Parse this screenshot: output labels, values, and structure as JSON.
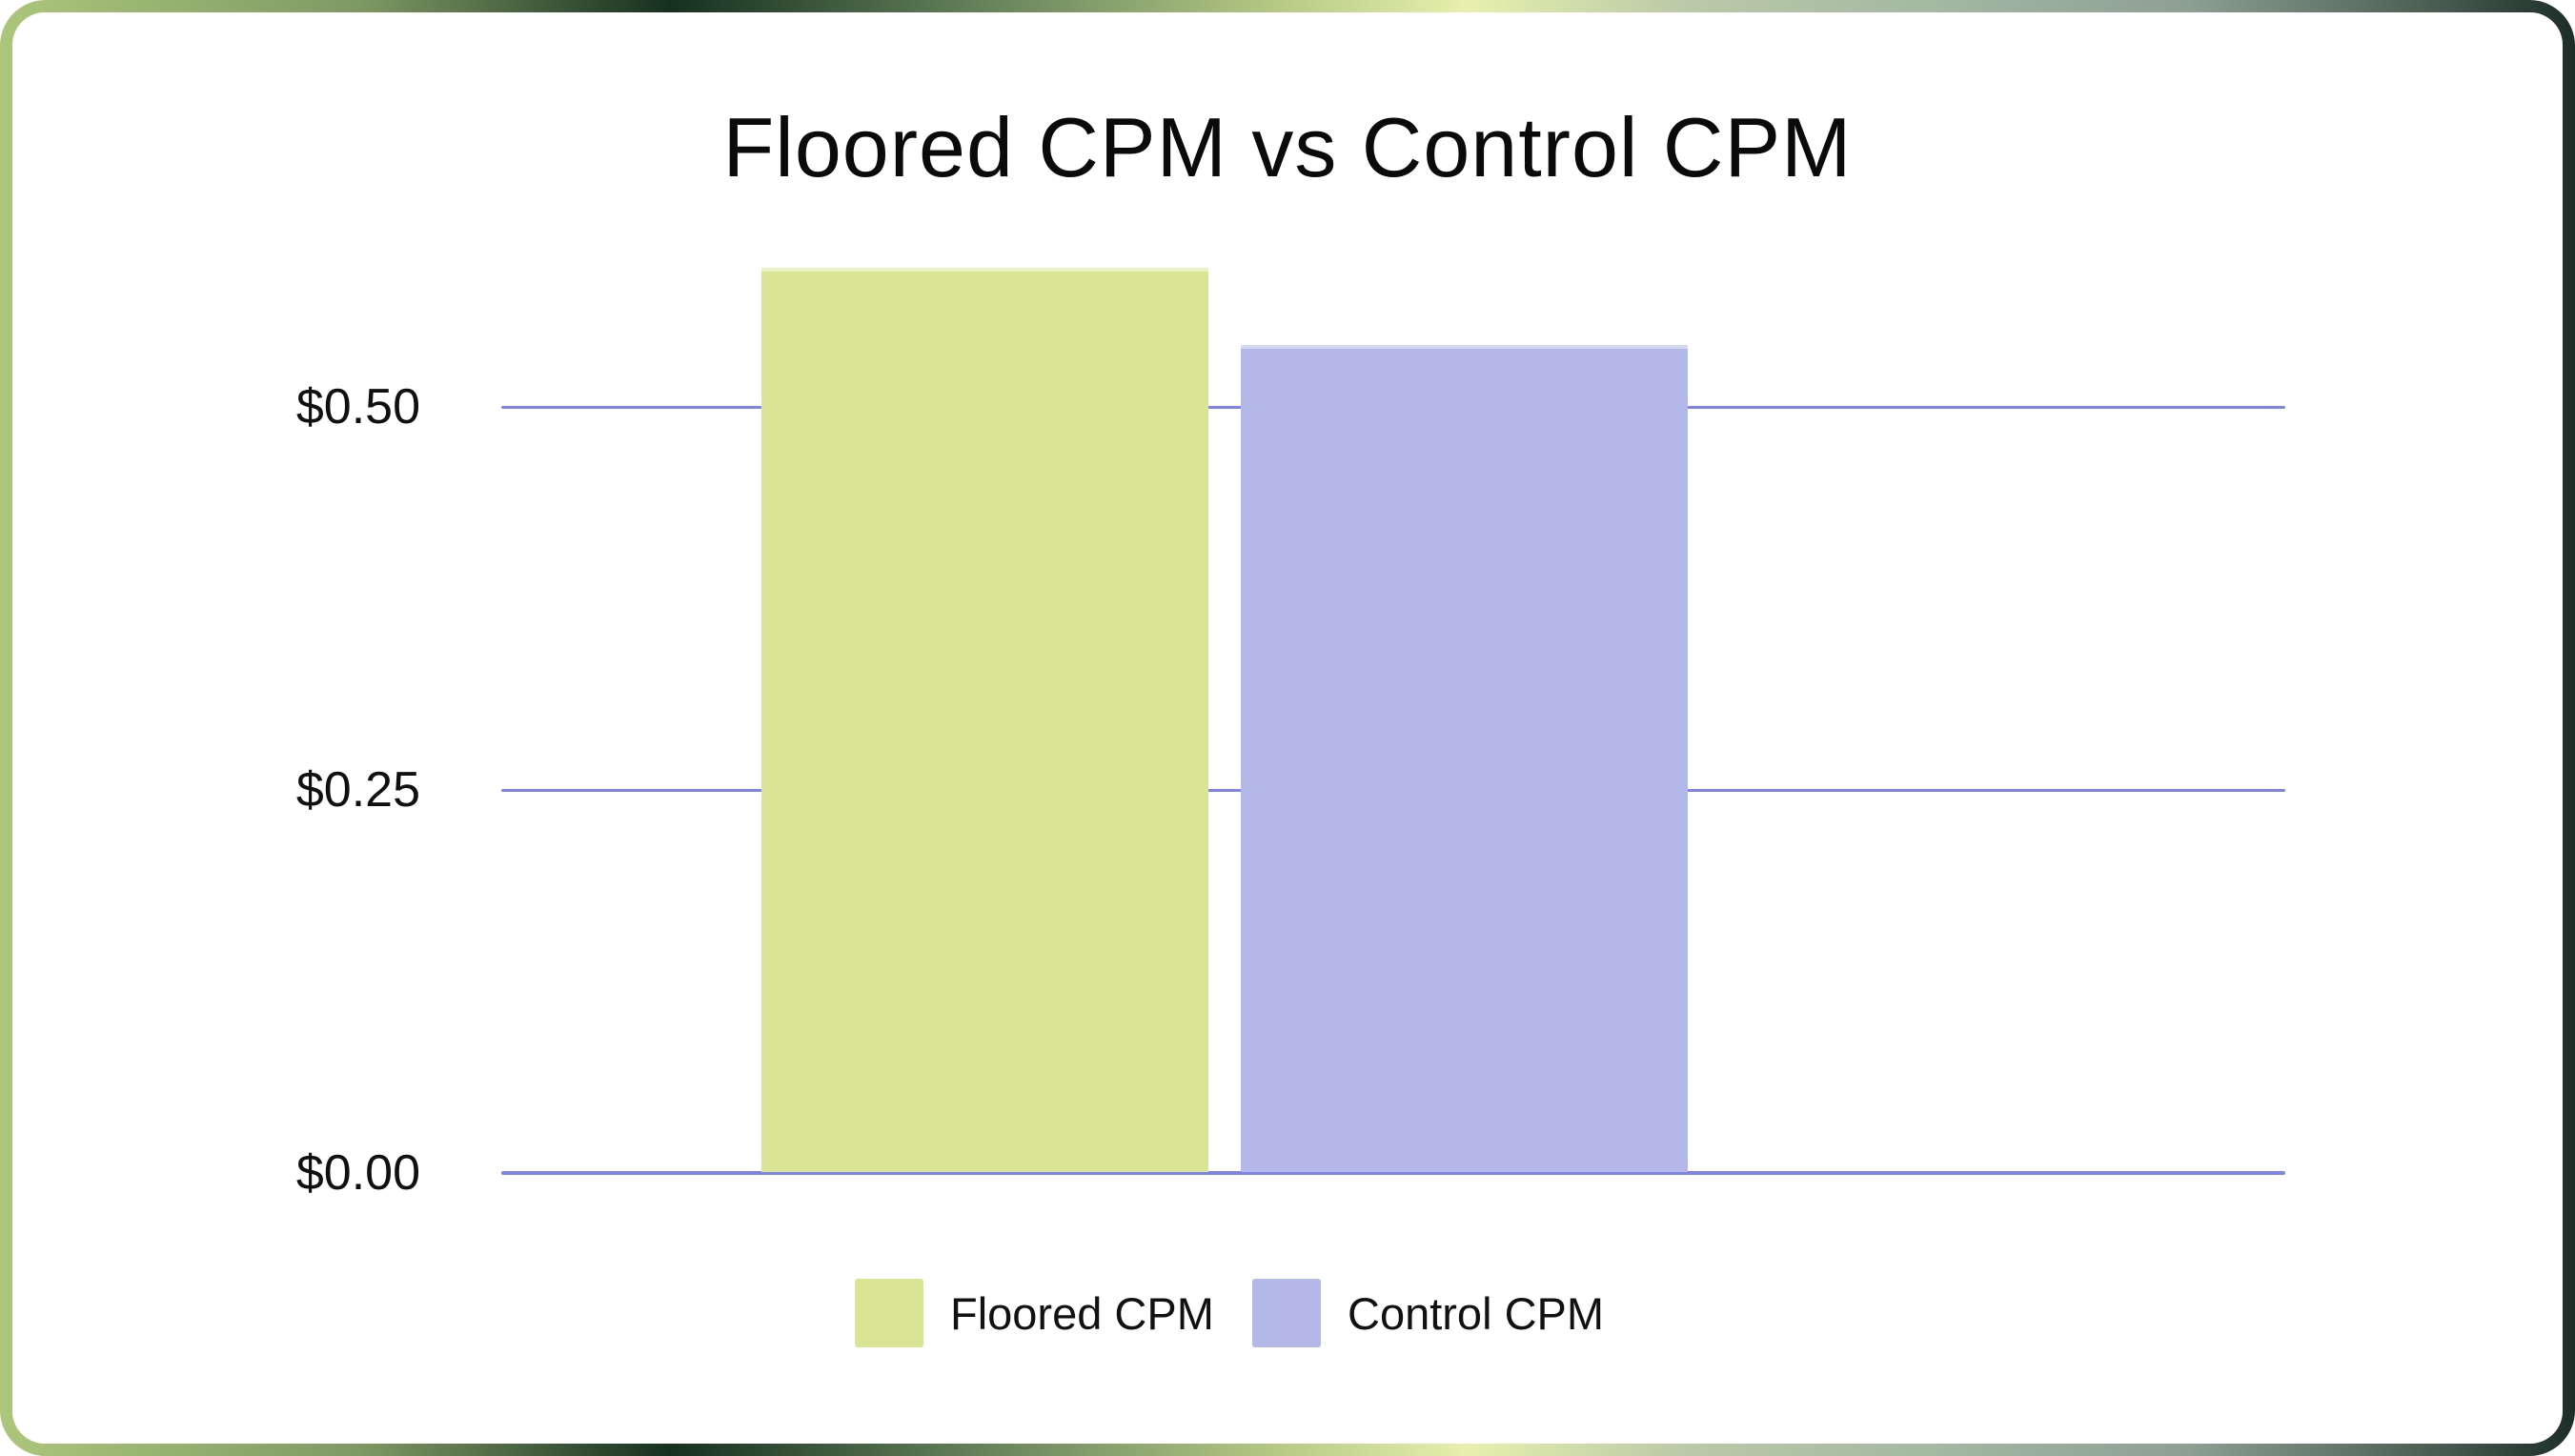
{
  "card": {
    "background": "#ffffff",
    "frame_gradient_colors": [
      "#adc67c",
      "#7e9a63",
      "#16301f",
      "#64815a",
      "#b8cc86",
      "#e7f0ac",
      "#bccba8",
      "#a4b8a2",
      "#8e9f93",
      "#4f6157",
      "#1c2e27"
    ]
  },
  "chart_data": {
    "type": "bar",
    "title": "Floored CPM vs Control CPM",
    "categories": [
      "Floored CPM",
      "Control CPM"
    ],
    "series": [
      {
        "name": "Floored CPM",
        "value": 0.59,
        "color": "#d9e595"
      },
      {
        "name": "Control CPM",
        "value": 0.54,
        "color": "#b4b8e8"
      }
    ],
    "xlabel": "",
    "ylabel": "",
    "y_ticks": [
      {
        "value": 0.0,
        "label": "$0.00"
      },
      {
        "value": 0.25,
        "label": "$0.25"
      },
      {
        "value": 0.5,
        "label": "$0.50"
      }
    ],
    "ylim": [
      0,
      0.62
    ],
    "grid": "horizontal",
    "gridline_color": "#7d82ed",
    "axis_text_color": "#101010",
    "title_color": "#0a0a0a",
    "legend_position": "bottom",
    "legend": [
      {
        "label": "Floored CPM",
        "color": "#d9e595"
      },
      {
        "label": "Control CPM",
        "color": "#b4b8e8"
      }
    ]
  }
}
